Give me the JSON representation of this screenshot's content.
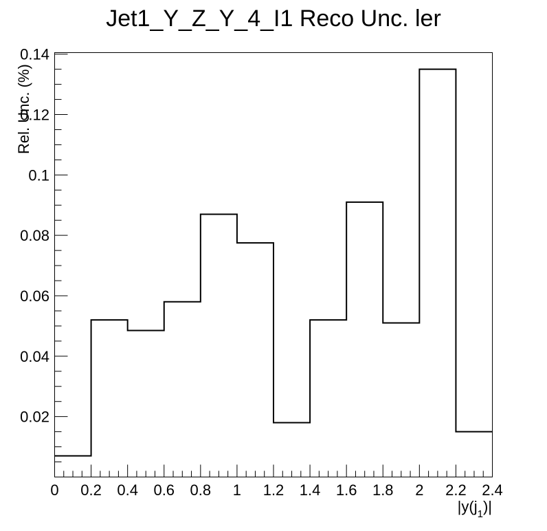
{
  "chart_data": {
    "type": "histogram",
    "title": "Jet1_Y_Z_Y_4_I1 Reco Unc. ler",
    "xlabel": "|y(j",
    "xlabel_sub": "1",
    "xlabel_end": ")|",
    "ylabel": "Rel. Unc. (%)",
    "bin_edges": [
      0,
      0.2,
      0.4,
      0.6,
      0.8,
      1.0,
      1.2,
      1.4,
      1.6,
      1.8,
      2.0,
      2.2,
      2.4
    ],
    "values": [
      0.007,
      0.052,
      0.0485,
      0.058,
      0.087,
      0.0775,
      0.018,
      0.052,
      0.091,
      0.051,
      0.135,
      0.015
    ],
    "xlim": [
      0,
      2.4
    ],
    "ylim": [
      0,
      0.1405
    ],
    "x_ticks": [
      0,
      0.2,
      0.4,
      0.6,
      0.8,
      1,
      1.2,
      1.4,
      1.6,
      1.8,
      2,
      2.2,
      2.4
    ],
    "x_tick_labels": [
      "0",
      "0.2",
      "0.4",
      "0.6",
      "0.8",
      "1",
      "1.2",
      "1.4",
      "1.6",
      "1.8",
      "2",
      "2.2",
      "2.4"
    ],
    "y_ticks": [
      0.02,
      0.04,
      0.06,
      0.08,
      0.1,
      0.12,
      0.14
    ],
    "y_tick_labels": [
      "0.02",
      "0.04",
      "0.06",
      "0.08",
      "0.1",
      "0.12",
      "0.14"
    ],
    "grid": false,
    "legend": "none",
    "line_color": "#000000"
  }
}
